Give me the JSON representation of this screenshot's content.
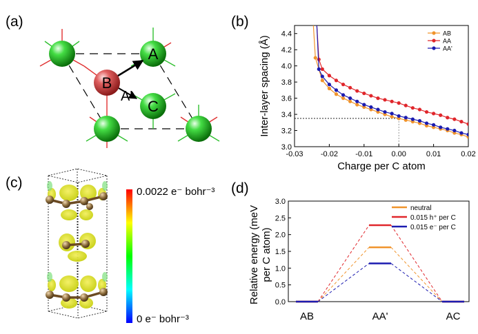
{
  "panels": {
    "a": "(a)",
    "b": "(b)",
    "c": "(c)",
    "d": "(d)"
  },
  "panel_a": {
    "atoms": [
      {
        "label": "A",
        "color": "green"
      },
      {
        "label": "B",
        "color": "red"
      },
      {
        "label": "C",
        "color": "green"
      }
    ],
    "arrow_label": "A'"
  },
  "panel_c": {
    "colorbar_max_label": "0.0022 e⁻ bohr⁻³",
    "colorbar_min_label": "0 e⁻ bohr⁻³",
    "colormap": [
      "#0000ff",
      "#00ffff",
      "#00ff00",
      "#ffff00",
      "#ff0000"
    ]
  },
  "chart_data": [
    {
      "type": "line",
      "panel": "b",
      "xlabel": "Charge per C atom",
      "ylabel": "Inter-layer spacing (Å)",
      "xlim": [
        -0.03,
        0.02
      ],
      "ylim": [
        3.0,
        4.5
      ],
      "xticks": [
        "-0.03",
        "-0.02",
        "-0.01",
        "0.00",
        "0.01",
        "0.02"
      ],
      "yticks": [
        "3.0",
        "3.2",
        "3.4",
        "3.6",
        "3.8",
        "4.0",
        "4.2",
        "4.4"
      ],
      "legend_position": "top-right",
      "reference_line": {
        "x": 0.0,
        "y": 3.35
      },
      "series": [
        {
          "name": "AB",
          "color": "#f0932b",
          "x": [
            -0.024,
            -0.022,
            -0.02,
            -0.018,
            -0.016,
            -0.014,
            -0.012,
            -0.01,
            -0.008,
            -0.006,
            -0.004,
            -0.002,
            0.0,
            0.002,
            0.004,
            0.006,
            0.008,
            0.01,
            0.012,
            0.014,
            0.016,
            0.018,
            0.02
          ],
          "y": [
            4.1,
            3.82,
            3.72,
            3.65,
            3.6,
            3.56,
            3.52,
            3.49,
            3.46,
            3.43,
            3.4,
            3.37,
            3.35,
            3.33,
            3.31,
            3.29,
            3.26,
            3.24,
            3.22,
            3.2,
            3.17,
            3.15,
            3.12
          ]
        },
        {
          "name": "AA",
          "color": "#e0262b",
          "x": [
            -0.023,
            -0.022,
            -0.02,
            -0.018,
            -0.016,
            -0.014,
            -0.012,
            -0.01,
            -0.008,
            -0.006,
            -0.004,
            -0.002,
            0.0,
            0.002,
            0.004,
            0.006,
            0.008,
            0.01,
            0.012,
            0.014,
            0.016,
            0.018,
            0.02
          ],
          "y": [
            4.08,
            3.96,
            3.88,
            3.82,
            3.77,
            3.73,
            3.69,
            3.66,
            3.63,
            3.6,
            3.58,
            3.56,
            3.54,
            3.51,
            3.48,
            3.46,
            3.43,
            3.41,
            3.39,
            3.36,
            3.34,
            3.31,
            3.28
          ]
        },
        {
          "name": "AA'",
          "color": "#1b1bb0",
          "x": [
            -0.023,
            -0.022,
            -0.02,
            -0.018,
            -0.016,
            -0.014,
            -0.012,
            -0.01,
            -0.008,
            -0.006,
            -0.004,
            -0.002,
            0.0,
            0.002,
            0.004,
            0.006,
            0.008,
            0.01,
            0.012,
            0.014,
            0.016,
            0.018,
            0.02
          ],
          "y": [
            3.96,
            3.87,
            3.77,
            3.7,
            3.64,
            3.6,
            3.56,
            3.52,
            3.49,
            3.46,
            3.43,
            3.41,
            3.38,
            3.36,
            3.34,
            3.32,
            3.29,
            3.27,
            3.24,
            3.22,
            3.2,
            3.17,
            3.15
          ]
        }
      ]
    },
    {
      "type": "line",
      "panel": "d",
      "ylabel": "Relative energy (meV per C atom)",
      "categories": [
        "AB",
        "AA'",
        "AC"
      ],
      "ylim": [
        0.0,
        3.0
      ],
      "yticks": [
        "0.0",
        "0.5",
        "1.0",
        "1.5",
        "2.0",
        "2.5",
        "3.0"
      ],
      "legend_position": "top-right",
      "series": [
        {
          "name": "neutral",
          "color": "#f0932b",
          "values": [
            0.0,
            1.62,
            0.0
          ]
        },
        {
          "name": "0.015 h⁺ per C",
          "color": "#e0262b",
          "values": [
            0.0,
            2.28,
            0.0
          ]
        },
        {
          "name": "0.015 e⁻ per C",
          "color": "#1b1bb0",
          "values": [
            0.0,
            1.14,
            0.0
          ]
        }
      ]
    }
  ]
}
